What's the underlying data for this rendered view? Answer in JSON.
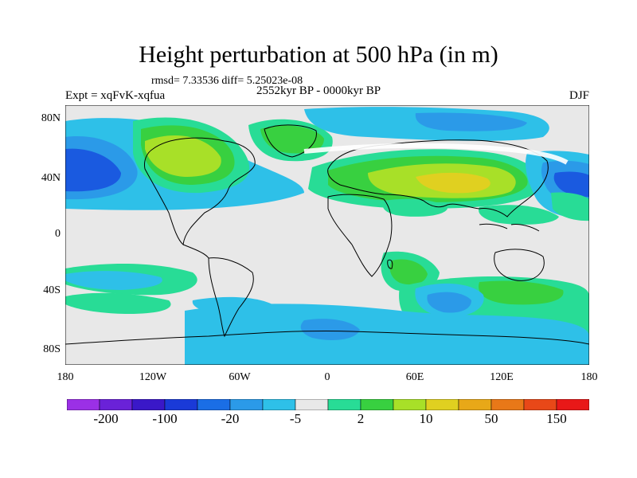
{
  "title": "Height perturbation at 500 hPa (in m)",
  "stats_line": "rmsd= 7.33536 diff= 5.25023e-08",
  "experiment": "Expt = xqFvK-xqfua",
  "period": "2552kyr BP - 0000kyr BP",
  "season": "DJF",
  "lat_labels": [
    "80N",
    "40N",
    "0",
    "40S",
    "80S"
  ],
  "lon_labels": [
    "180",
    "120W",
    "60W",
    "0",
    "60E",
    "120E",
    "180"
  ],
  "colorbar": {
    "colors": [
      "#9b30e6",
      "#6a22d8",
      "#3a18c8",
      "#1a3ad8",
      "#1a6ee6",
      "#2b9ae8",
      "#2ec0e8",
      "#e8e8e8",
      "#28dc96",
      "#38d040",
      "#a8e028",
      "#e0d020",
      "#e8a818",
      "#e87818",
      "#e84818",
      "#e81818"
    ],
    "labels": [
      "-200",
      "-100",
      "-20",
      "-5",
      "2",
      "10",
      "50",
      "150"
    ]
  },
  "map_colors": {
    "background": "#e8e8e8",
    "deep_blue": "#1a5ae0",
    "blue": "#2b9ae8",
    "light_blue": "#2ec0e8",
    "mint": "#28dc96",
    "green": "#38d040",
    "yellow_green": "#a8e028",
    "yellow": "#e0d020",
    "coast": "#000000"
  }
}
